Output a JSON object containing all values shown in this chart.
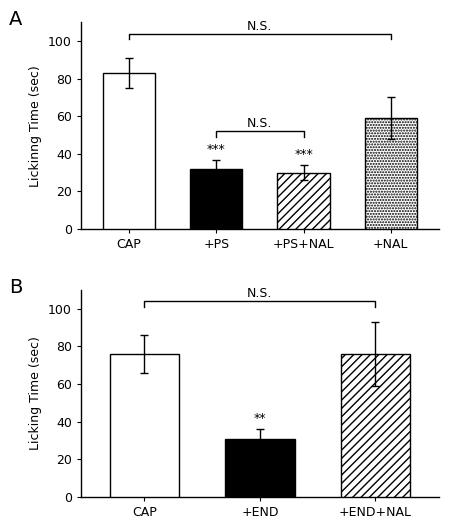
{
  "panel_A": {
    "categories": [
      "CAP",
      "+PS",
      "+PS+NAL",
      "+NAL"
    ],
    "values": [
      83,
      32,
      30,
      59
    ],
    "errors": [
      8,
      5,
      4,
      11
    ],
    "significance": [
      "",
      "***",
      "***",
      ""
    ],
    "ylabel": "Lickinng Time (sec)",
    "ylim": [
      0,
      110
    ],
    "yticks": [
      0,
      20,
      40,
      60,
      80,
      100
    ],
    "ns_bracket_main": [
      0,
      3,
      104,
      "N.S."
    ],
    "ns_bracket_inner": [
      1,
      2,
      52,
      "N.S."
    ]
  },
  "panel_B": {
    "categories": [
      "CAP",
      "+END",
      "+END+NAL"
    ],
    "values": [
      76,
      31,
      76
    ],
    "errors": [
      10,
      5,
      17
    ],
    "significance": [
      "",
      "**",
      ""
    ],
    "ylabel": "Licking Time (sec)",
    "ylim": [
      0,
      110
    ],
    "yticks": [
      0,
      20,
      40,
      60,
      80,
      100
    ],
    "ns_bracket_main": [
      0,
      2,
      104,
      "N.S."
    ]
  },
  "label_A": "A",
  "label_B": "B",
  "background_color": "#ffffff",
  "bar_facecolors_A": [
    "white",
    "black",
    "white",
    "white"
  ],
  "bar_facecolors_B": [
    "white",
    "black",
    "white"
  ],
  "hatch_patterns_A": [
    "",
    "",
    "////",
    "......"
  ],
  "hatch_patterns_B": [
    "",
    "",
    "////"
  ],
  "fontsize_ylabel": 9,
  "fontsize_ticks": 9,
  "fontsize_sig": 9,
  "fontsize_ns": 9,
  "fontsize_panel": 14,
  "bar_width": 0.6
}
